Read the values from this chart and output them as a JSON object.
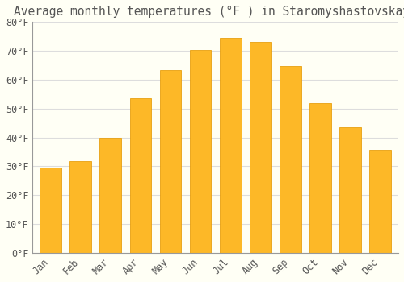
{
  "title": "Average monthly temperatures (°F ) in Staromyshastovskaya",
  "months": [
    "Jan",
    "Feb",
    "Mar",
    "Apr",
    "May",
    "Jun",
    "Jul",
    "Aug",
    "Sep",
    "Oct",
    "Nov",
    "Dec"
  ],
  "values": [
    29.5,
    31.8,
    39.9,
    53.6,
    63.3,
    70.2,
    74.5,
    73.2,
    64.6,
    51.8,
    43.5,
    35.6
  ],
  "bar_color": "#FDB827",
  "bar_edge_color": "#E8A010",
  "background_color": "#FFFFF5",
  "grid_color": "#DDDDDD",
  "text_color": "#555555",
  "ylim": [
    0,
    80
  ],
  "ytick_step": 10,
  "title_fontsize": 10.5,
  "tick_fontsize": 8.5,
  "bar_width": 0.72
}
